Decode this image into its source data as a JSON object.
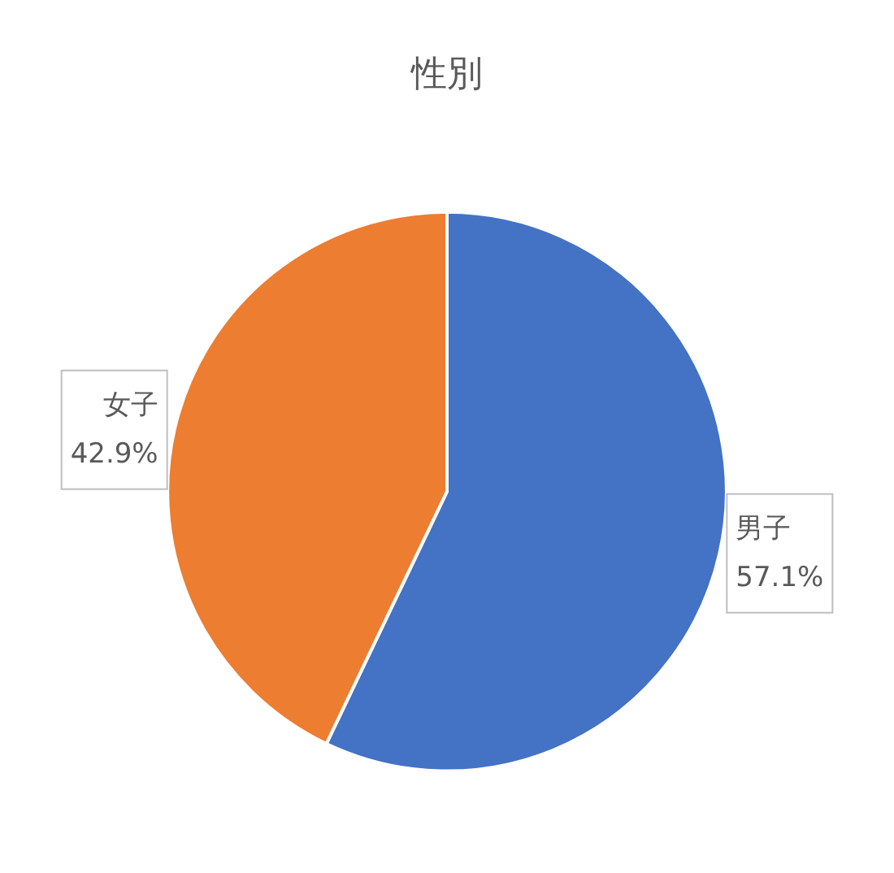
{
  "chart_data": {
    "type": "pie",
    "title": "性別",
    "categories": [
      "男子",
      "女子"
    ],
    "values": [
      57.1,
      42.9
    ],
    "colors": [
      "#4472c4",
      "#ed7d31"
    ],
    "value_labels": [
      "57.1%",
      "42.9%"
    ]
  }
}
